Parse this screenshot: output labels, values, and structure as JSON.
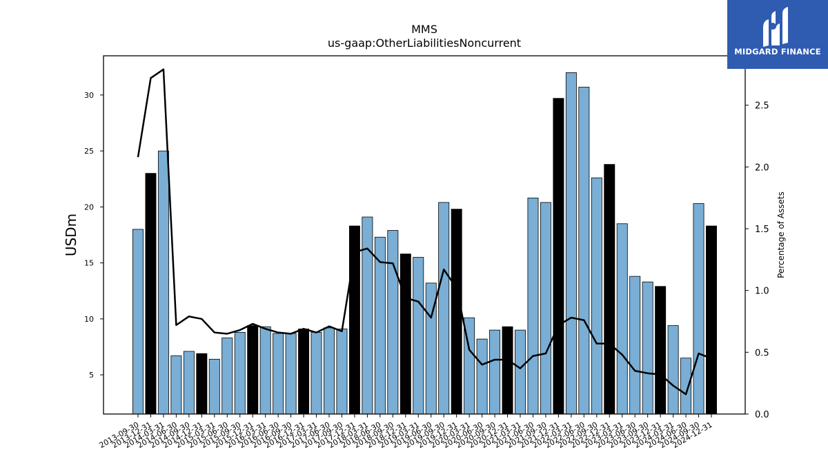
{
  "logo": {
    "text": "MIDGARD FINANCE"
  },
  "chart_data": {
    "type": "bar",
    "title": "MMS",
    "subtitle": "us-gaap:OtherLiabilitiesNoncurrent",
    "ylabel": "USDm",
    "y2label": "Percentage of Assets",
    "ylim": [
      1.5,
      33.5
    ],
    "y2lim": [
      0.0,
      2.9
    ],
    "yticks": [
      "5",
      "10",
      "15",
      "20",
      "25",
      "30"
    ],
    "y2ticks": [
      "0.0",
      "0.5",
      "1.0",
      "1.5",
      "2.0",
      "2.5"
    ],
    "bar_color": "#7aaed4",
    "highlight_color": "#000000",
    "line_color": "#000000",
    "categories": [
      "2013-09-30",
      "2013-12-31",
      "2014-03-31",
      "2014-06-30",
      "2014-09-30",
      "2014-12-31",
      "2015-03-31",
      "2015-06-30",
      "2015-09-30",
      "2015-12-31",
      "2016-03-31",
      "2016-06-30",
      "2016-09-30",
      "2016-12-31",
      "2017-03-31",
      "2017-06-30",
      "2017-09-30",
      "2017-12-31",
      "2018-03-31",
      "2018-06-30",
      "2018-09-30",
      "2018-12-31",
      "2019-03-31",
      "2019-06-30",
      "2019-09-30",
      "2019-12-31",
      "2020-03-31",
      "2020-06-30",
      "2020-09-30",
      "2020-12-31",
      "2021-03-31",
      "2021-06-30",
      "2021-09-30",
      "2021-12-31",
      "2022-03-31",
      "2022-06-30",
      "2022-09-30",
      "2022-12-31",
      "2023-03-31",
      "2023-06-30",
      "2023-09-30",
      "2023-12-31",
      "2024-03-31",
      "2024-06-30",
      "2024-09-30",
      "2024-12-31"
    ],
    "values": [
      18.0,
      23.0,
      25.0,
      6.7,
      7.1,
      6.9,
      6.4,
      8.3,
      8.8,
      9.4,
      9.3,
      8.7,
      8.7,
      9.1,
      8.8,
      9.2,
      9.1,
      18.3,
      19.1,
      17.3,
      17.9,
      15.8,
      15.5,
      13.2,
      20.4,
      19.8,
      10.1,
      8.2,
      9.0,
      9.3,
      9.0,
      20.8,
      20.4,
      29.7,
      32.0,
      30.7,
      22.6,
      23.8,
      18.5,
      13.8,
      13.3,
      12.9,
      9.4,
      6.5,
      20.3,
      18.3
    ],
    "highlight": [
      false,
      true,
      false,
      false,
      false,
      true,
      false,
      false,
      false,
      true,
      false,
      false,
      false,
      true,
      false,
      false,
      false,
      true,
      false,
      false,
      false,
      true,
      false,
      false,
      false,
      true,
      false,
      false,
      false,
      true,
      false,
      false,
      false,
      true,
      false,
      false,
      false,
      true,
      false,
      false,
      false,
      true,
      false,
      false,
      false,
      true
    ],
    "series": [
      {
        "values": [
          2.08,
          2.72,
          2.79,
          0.72,
          0.79,
          0.77,
          0.66,
          0.65,
          0.68,
          0.73,
          0.69,
          0.66,
          0.65,
          0.69,
          0.66,
          0.71,
          0.67,
          1.31,
          1.34,
          1.23,
          1.22,
          0.94,
          0.91,
          0.78,
          1.17,
          1.02,
          0.52,
          0.4,
          0.44,
          0.44,
          0.37,
          0.47,
          0.49,
          0.72,
          0.78,
          0.76,
          0.57,
          0.57,
          0.48,
          0.35,
          0.33,
          0.32,
          0.23,
          0.16,
          0.49,
          0.45
        ]
      }
    ]
  }
}
